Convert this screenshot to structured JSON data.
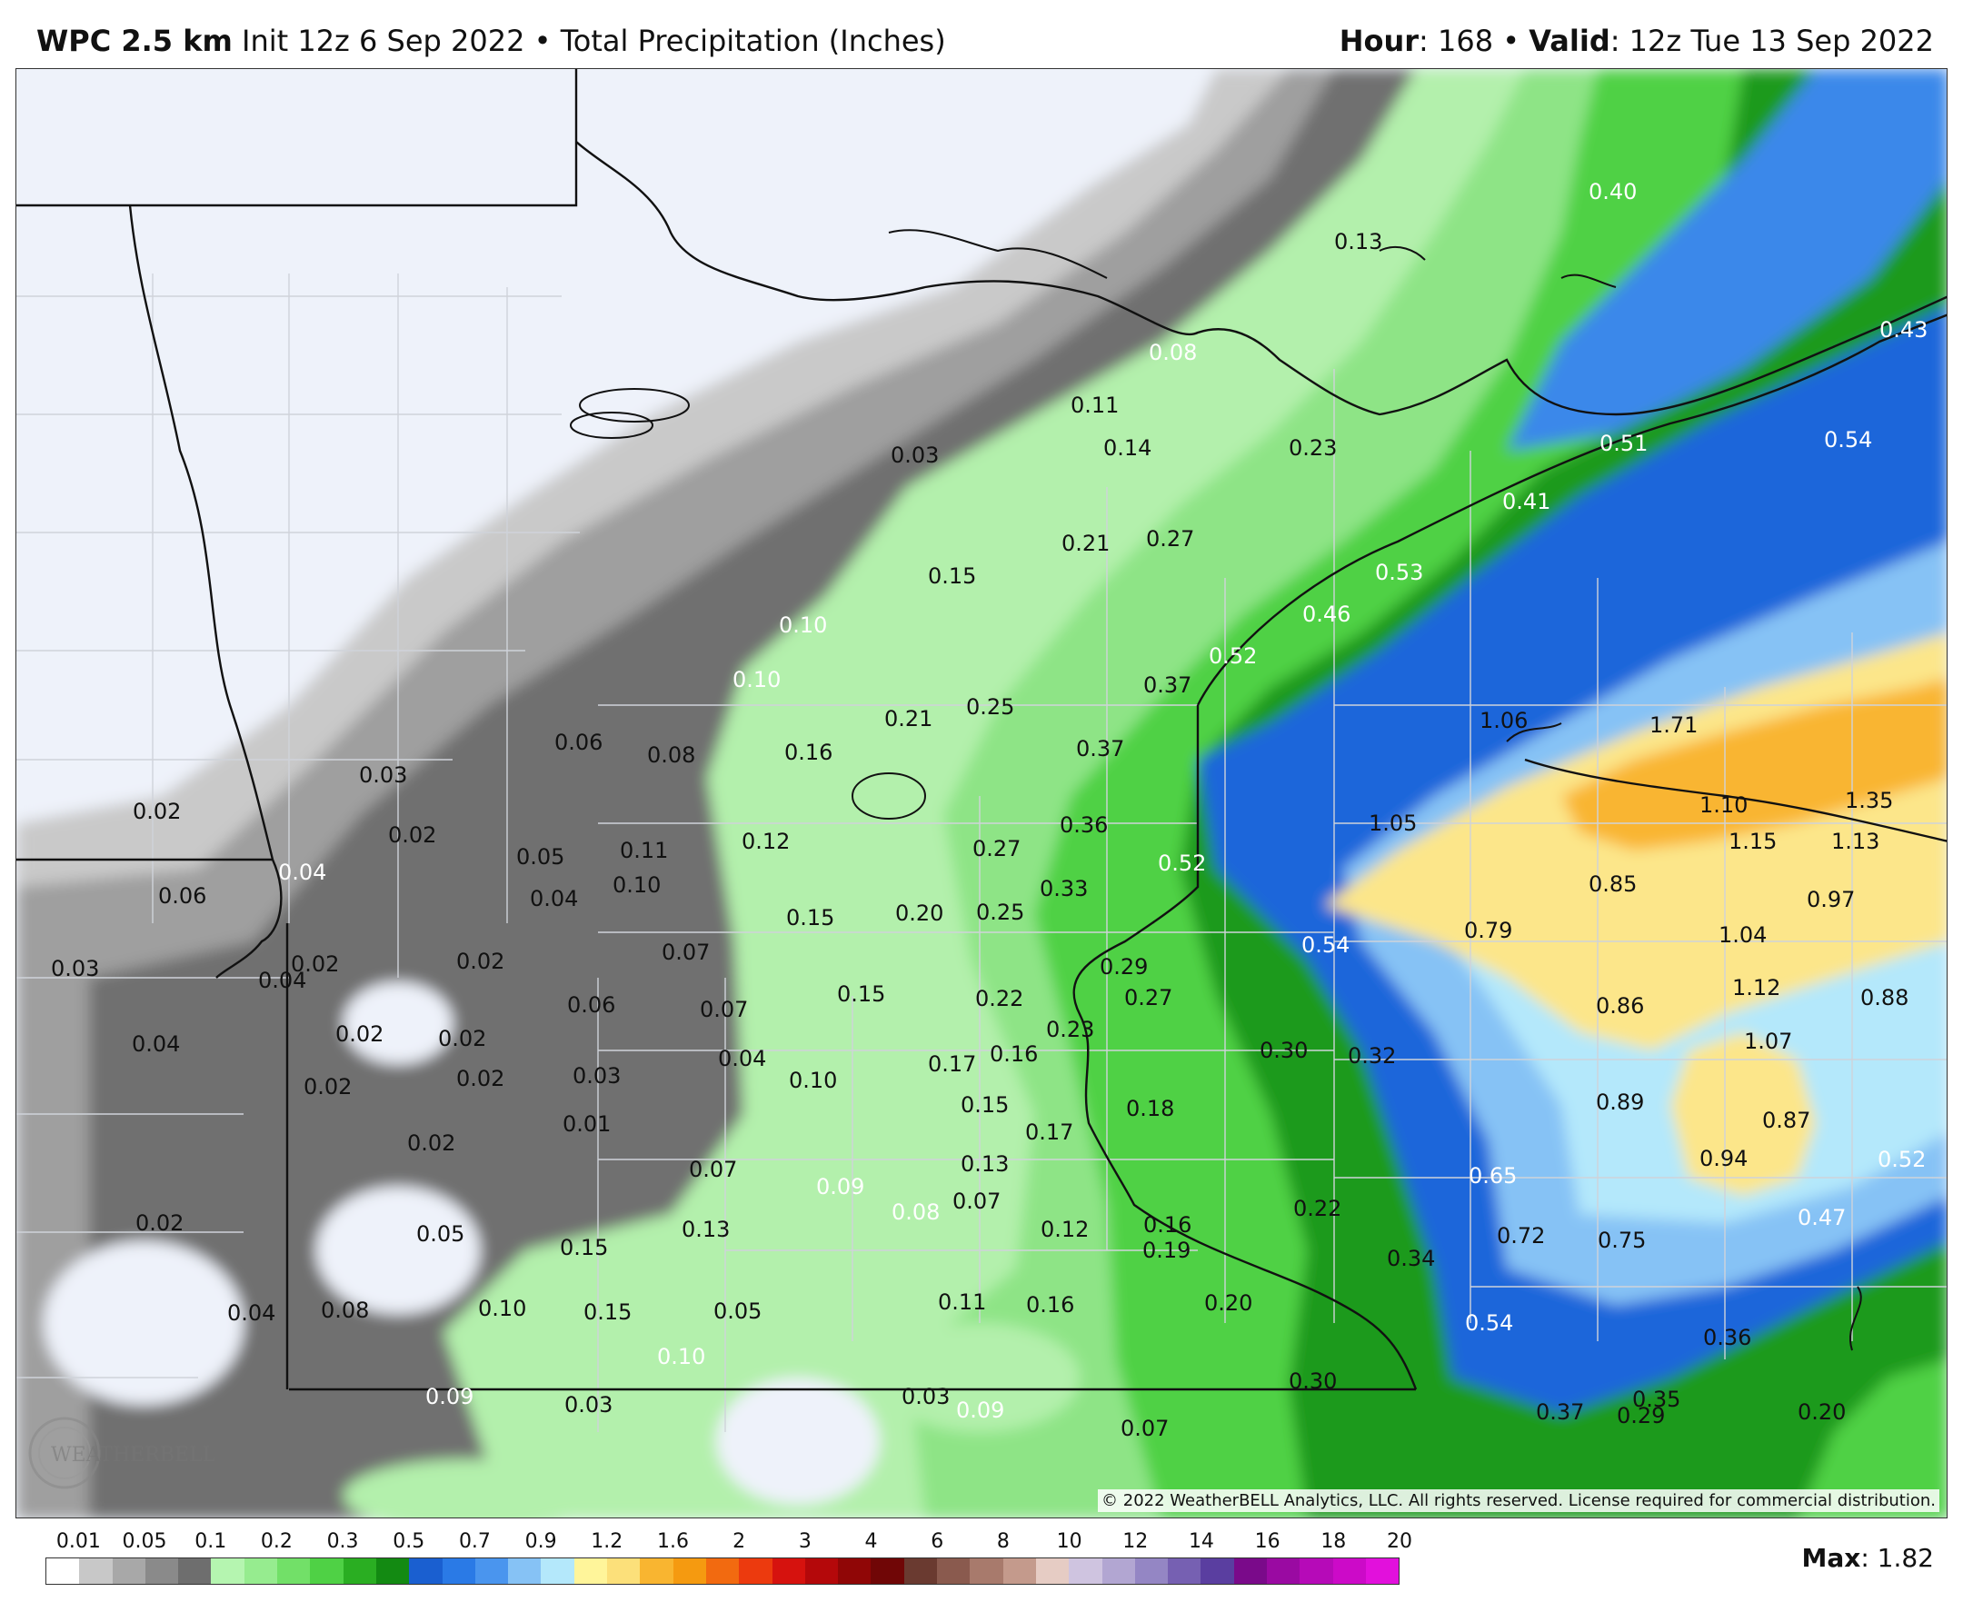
{
  "header": {
    "model": "WPC 2.5 km",
    "init_text": " Init 12z 6 Sep 2022 • Total Precipitation (Inches)",
    "hour_label": "Hour",
    "hour_value": ": 168 • ",
    "valid_label": "Valid",
    "valid_value": ": 12z Tue 13 Sep 2022"
  },
  "map": {
    "copyright": "© 2022 WeatherBELL Analytics, LLC. All rights reserved. License required for commercial distribution.",
    "logo_text": "WEATHERBELL",
    "labels": [
      {
        "text": "0.40"
      },
      {
        "text": "0.13"
      },
      {
        "text": "0.43"
      },
      {
        "text": "0.08"
      },
      {
        "text": "0.11"
      },
      {
        "text": "0.14"
      },
      {
        "text": "0.23"
      },
      {
        "text": "0.51"
      },
      {
        "text": "0.54"
      },
      {
        "text": "0.03"
      },
      {
        "text": "0.41"
      },
      {
        "text": "0.21"
      },
      {
        "text": "0.27"
      },
      {
        "text": "0.53"
      },
      {
        "text": "0.15"
      },
      {
        "text": "0.46"
      },
      {
        "text": "0.10"
      },
      {
        "text": "0.52"
      },
      {
        "text": "0.37"
      },
      {
        "text": "0.10"
      },
      {
        "text": "1.06"
      },
      {
        "text": "1.71"
      },
      {
        "text": "0.21"
      },
      {
        "text": "0.25"
      },
      {
        "text": "0.06"
      },
      {
        "text": "0.08"
      },
      {
        "text": "0.16"
      },
      {
        "text": "0.37"
      },
      {
        "text": "0.03"
      },
      {
        "text": "1.10"
      },
      {
        "text": "1.35"
      },
      {
        "text": "0.02"
      },
      {
        "text": "0.36"
      },
      {
        "text": "1.05"
      },
      {
        "text": "0.02"
      },
      {
        "text": "0.12"
      },
      {
        "text": "1.15"
      },
      {
        "text": "1.13"
      },
      {
        "text": "0.05"
      },
      {
        "text": "0.11"
      },
      {
        "text": "0.27"
      },
      {
        "text": "0.04"
      },
      {
        "text": "0.52"
      },
      {
        "text": "0.10"
      },
      {
        "text": "0.33"
      },
      {
        "text": "0.85"
      },
      {
        "text": "0.06"
      },
      {
        "text": "0.04"
      },
      {
        "text": "0.97"
      },
      {
        "text": "0.15"
      },
      {
        "text": "0.20"
      },
      {
        "text": "0.25"
      },
      {
        "text": "0.79"
      },
      {
        "text": "0.54"
      },
      {
        "text": "1.04"
      },
      {
        "text": "0.03"
      },
      {
        "text": "0.02"
      },
      {
        "text": "0.07"
      },
      {
        "text": "0.02"
      },
      {
        "text": "0.04"
      },
      {
        "text": "0.29"
      },
      {
        "text": "1.12"
      },
      {
        "text": "0.15"
      },
      {
        "text": "0.88"
      },
      {
        "text": "0.22"
      },
      {
        "text": "0.27"
      },
      {
        "text": "0.06"
      },
      {
        "text": "0.07"
      },
      {
        "text": "0.86"
      },
      {
        "text": "0.23"
      },
      {
        "text": "0.02"
      },
      {
        "text": "0.02"
      },
      {
        "text": "1.07"
      },
      {
        "text": "0.04"
      },
      {
        "text": "0.04"
      },
      {
        "text": "0.16"
      },
      {
        "text": "0.30"
      },
      {
        "text": "0.32"
      },
      {
        "text": "0.17"
      },
      {
        "text": "0.02"
      },
      {
        "text": "0.02"
      },
      {
        "text": "0.03"
      },
      {
        "text": "0.10"
      },
      {
        "text": "0.15"
      },
      {
        "text": "0.89"
      },
      {
        "text": "0.18"
      },
      {
        "text": "0.01"
      },
      {
        "text": "0.17"
      },
      {
        "text": "0.87"
      },
      {
        "text": "0.02"
      },
      {
        "text": "0.13"
      },
      {
        "text": "0.07"
      },
      {
        "text": "0.94"
      },
      {
        "text": "0.52"
      },
      {
        "text": "0.65"
      },
      {
        "text": "0.09"
      },
      {
        "text": "0.08"
      },
      {
        "text": "0.07"
      },
      {
        "text": "0.22"
      },
      {
        "text": "0.47"
      },
      {
        "text": "0.02"
      },
      {
        "text": "0.05"
      },
      {
        "text": "0.13"
      },
      {
        "text": "0.15"
      },
      {
        "text": "0.12"
      },
      {
        "text": "0.16"
      },
      {
        "text": "0.72"
      },
      {
        "text": "0.75"
      },
      {
        "text": "0.19"
      },
      {
        "text": "0.34"
      },
      {
        "text": "0.04"
      },
      {
        "text": "0.08"
      },
      {
        "text": "0.10"
      },
      {
        "text": "0.15"
      },
      {
        "text": "0.05"
      },
      {
        "text": "0.11"
      },
      {
        "text": "0.16"
      },
      {
        "text": "0.20"
      },
      {
        "text": "0.54"
      },
      {
        "text": "0.36"
      },
      {
        "text": "0.10"
      },
      {
        "text": "0.30"
      },
      {
        "text": "0.09"
      },
      {
        "text": "0.03"
      },
      {
        "text": "0.03"
      },
      {
        "text": "0.09"
      },
      {
        "text": "0.35"
      },
      {
        "text": "0.37"
      },
      {
        "text": "0.29"
      },
      {
        "text": "0.20"
      },
      {
        "text": "0.07"
      }
    ]
  },
  "legend": {
    "ticks": [
      "0.01",
      "0.05",
      "0.1",
      "0.2",
      "0.3",
      "0.5",
      "0.7",
      "0.9",
      "1.2",
      "1.6",
      "2",
      "3",
      "4",
      "6",
      "8",
      "10",
      "12",
      "14",
      "16",
      "18",
      "20"
    ],
    "colors": [
      "#ffffff",
      "#c8c8c8",
      "#a8a8a8",
      "#8a8a8a",
      "#6e6e6e",
      "#b5f5b0",
      "#96ec8f",
      "#72e068",
      "#4fd145",
      "#2aae22",
      "#138a12",
      "#1a5fd0",
      "#2a7ae6",
      "#4a95ee",
      "#86c2f5",
      "#b4e8fb",
      "#fff59a",
      "#fce07a",
      "#f9b530",
      "#f59a10",
      "#f26a10",
      "#ec3a0e",
      "#d6120e",
      "#b4080a",
      "#900606",
      "#700606",
      "#6a3a30",
      "#8a5a4e",
      "#a87a6c",
      "#c49a8c",
      "#e6ccc4",
      "#cfc4e0",
      "#b2a6d2",
      "#9486c4",
      "#7660b2",
      "#5a3ea0",
      "#7a0a8a",
      "#9a0aa2",
      "#b60ab8",
      "#cc0ac8",
      "#e210dc"
    ],
    "max_label": "Max",
    "max_value": ": 1.82"
  }
}
